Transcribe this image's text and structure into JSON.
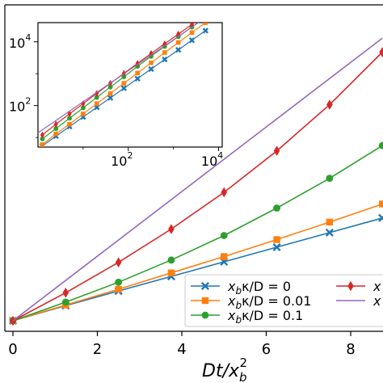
{
  "chart_data": [
    {
      "type": "line",
      "xlabel": "Dt/x_b^2",
      "xlim": [
        -0.2,
        8.7
      ],
      "ylim": [
        -0.2,
        23.0
      ],
      "xticks": [
        0,
        2,
        4,
        6,
        8
      ],
      "grid": false,
      "legend_placement": "lower-right",
      "series": [
        {
          "name": "x_bκ/D = 0",
          "color": "#1f77b4",
          "marker": "x",
          "x": [
            0,
            1.25,
            2.5,
            3.75,
            5.0,
            6.25,
            7.5,
            8.75
          ],
          "y": [
            0,
            1.3,
            2.55,
            3.8,
            5.05,
            6.3,
            7.55,
            8.8
          ]
        },
        {
          "name": "x_bκ/D = 0.01",
          "color": "#ff7f0e",
          "marker": "s",
          "x": [
            0,
            1.25,
            2.5,
            3.75,
            5.0,
            6.25,
            7.5,
            8.75
          ],
          "y": [
            0,
            1.35,
            2.7,
            4.1,
            5.5,
            6.95,
            8.45,
            10.0
          ]
        },
        {
          "name": "x_bκ/D = 0.1",
          "color": "#2ca02c",
          "marker": "o",
          "x": [
            0,
            1.25,
            2.5,
            3.75,
            5.0,
            6.25,
            7.5,
            8.75
          ],
          "y": [
            0,
            1.6,
            3.3,
            5.2,
            7.3,
            9.65,
            12.2,
            15.0
          ]
        },
        {
          "name": "",
          "color": "#d62728",
          "marker": "d",
          "x": [
            0,
            1.25,
            2.5,
            3.75,
            5.0,
            6.25,
            7.5,
            8.75
          ],
          "y": [
            0,
            2.4,
            5.0,
            7.85,
            11.0,
            14.55,
            18.5,
            23.0
          ]
        },
        {
          "name": "",
          "color": "#9467bd",
          "marker": "none",
          "x": [
            0,
            8.75
          ],
          "y": [
            0,
            24.2
          ]
        }
      ]
    },
    {
      "type": "line",
      "scale": "log-log",
      "xlim": [
        1,
        12000
      ],
      "ylim": [
        5,
        40000
      ],
      "xticks": [
        100,
        10000
      ],
      "yticks": [
        100,
        10000
      ],
      "series": [
        {
          "color": "#1f77b4",
          "marker": "x",
          "x": [
            1.25,
            2.5,
            5,
            10,
            20,
            40,
            80,
            160,
            320,
            640,
            1280,
            2560,
            5120
          ],
          "y": [
            5.4,
            11,
            22,
            44,
            88,
            175,
            350,
            700,
            1400,
            2800,
            5600,
            11200,
            22400
          ]
        },
        {
          "color": "#ff7f0e",
          "marker": "s",
          "x": [
            1.25,
            2.5,
            5,
            10,
            20,
            40,
            80,
            160,
            320,
            640,
            1280,
            2560,
            5120
          ],
          "y": [
            6.0,
            13,
            26,
            55,
            115,
            240,
            500,
            1050,
            2200,
            4600,
            9500,
            19500,
            40000
          ]
        },
        {
          "color": "#2ca02c",
          "marker": "o",
          "x": [
            1.25,
            2.5,
            5,
            10,
            20,
            40,
            80,
            160,
            320,
            640,
            1280,
            2560,
            5120
          ],
          "y": [
            9,
            19,
            40,
            85,
            180,
            380,
            800,
            1700,
            3500,
            7200,
            14500,
            29000,
            58000
          ]
        },
        {
          "color": "#d62728",
          "marker": "d",
          "x": [
            1.25,
            2.5,
            5,
            10,
            20,
            40,
            80,
            160,
            320,
            640,
            1280,
            2560,
            5120
          ],
          "y": [
            12,
            26,
            55,
            115,
            240,
            500,
            1030,
            2100,
            4300,
            8700,
            17500,
            35000,
            70000
          ]
        },
        {
          "color": "#9467bd",
          "marker": "none",
          "x": [
            1,
            12000
          ],
          "y": [
            14,
            130000
          ]
        }
      ]
    }
  ],
  "labels": {
    "xaxis_title": "Dt/x",
    "xaxis_sub": "b",
    "xaxis_sup": "2",
    "xticks": [
      "0",
      "2",
      "4",
      "6",
      "8"
    ],
    "inset_xticks": [
      {
        "base": "10",
        "exp": "2"
      },
      {
        "base": "10",
        "exp": "4"
      }
    ],
    "inset_yticks": [
      {
        "base": "10",
        "exp": "2"
      },
      {
        "base": "10",
        "exp": "4"
      }
    ]
  },
  "legend": {
    "items": [
      {
        "main": "x",
        "sub": "b",
        "rest": "κ/D = 0",
        "color": "#1f77b4",
        "marker": "x"
      },
      {
        "main": "x",
        "sub": "b",
        "rest": "κ/D = 0.01",
        "color": "#ff7f0e",
        "marker": "s"
      },
      {
        "main": "x",
        "sub": "b",
        "rest": "κ/D = 0.1",
        "color": "#2ca02c",
        "marker": "o"
      },
      {
        "main": "x",
        "sub": "",
        "rest": "",
        "color": "#d62728",
        "marker": "d"
      },
      {
        "main": "x",
        "sub": "",
        "rest": "",
        "color": "#9467bd",
        "marker": "none"
      }
    ]
  }
}
